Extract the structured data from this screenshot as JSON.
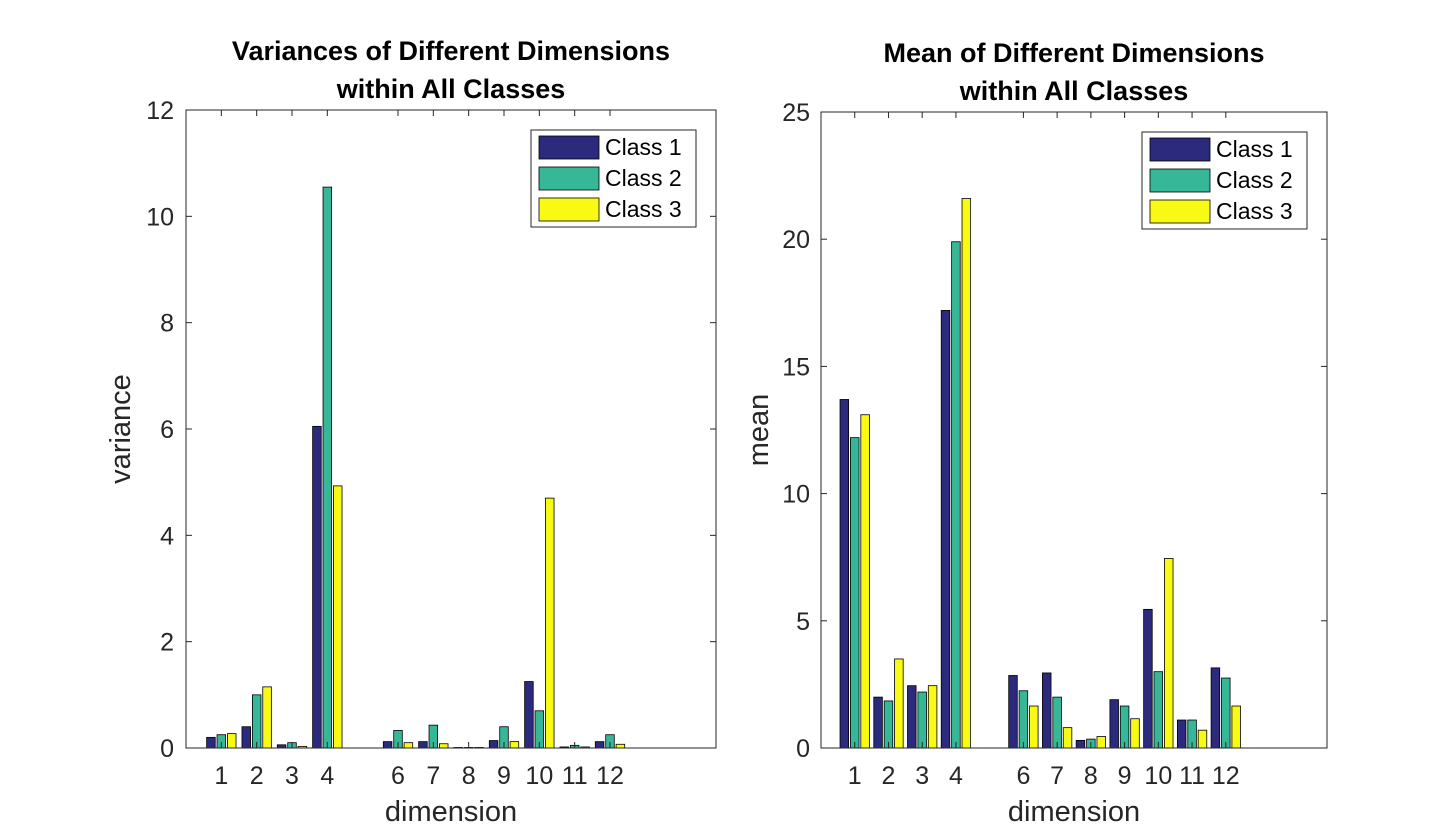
{
  "chart_data": [
    {
      "type": "bar",
      "title": [
        "Variances of Different Dimensions",
        "within All Classes"
      ],
      "xlabel": "dimension",
      "ylabel": "variance",
      "ylim": [
        0,
        12
      ],
      "xlim": [
        0,
        15
      ],
      "yticks": [
        0,
        2,
        4,
        6,
        8,
        10,
        12
      ],
      "x": [
        1,
        2,
        3,
        4,
        6,
        7,
        8,
        9,
        10,
        11,
        12
      ],
      "xticklabels": [
        "1",
        "2",
        "3",
        "4",
        "6",
        "7",
        "8",
        "9",
        "10",
        "11",
        "12"
      ],
      "legend_position": "top-right",
      "series": [
        {
          "name": "Class 1",
          "color": "#2c2a7d",
          "values": [
            0.2,
            0.4,
            0.06,
            6.05,
            0.12,
            0.12,
            0.01,
            0.14,
            1.25,
            0.02,
            0.12
          ]
        },
        {
          "name": "Class 2",
          "color": "#36b797",
          "values": [
            0.25,
            1.0,
            0.1,
            10.55,
            0.33,
            0.43,
            0.01,
            0.4,
            0.7,
            0.05,
            0.25
          ]
        },
        {
          "name": "Class 3",
          "color": "#f9fa14",
          "values": [
            0.27,
            1.15,
            0.03,
            4.93,
            0.1,
            0.08,
            0.01,
            0.12,
            4.7,
            0.02,
            0.07
          ]
        }
      ]
    },
    {
      "type": "bar",
      "title": [
        "Mean of Different Dimensions",
        "within All Classes"
      ],
      "xlabel": "dimension",
      "ylabel": "mean",
      "ylim": [
        0,
        25
      ],
      "xlim": [
        0,
        15
      ],
      "yticks": [
        0,
        5,
        10,
        15,
        20,
        25
      ],
      "x": [
        1,
        2,
        3,
        4,
        6,
        7,
        8,
        9,
        10,
        11,
        12
      ],
      "xticklabels": [
        "1",
        "2",
        "3",
        "4",
        "6",
        "7",
        "8",
        "9",
        "10",
        "11",
        "12"
      ],
      "legend_position": "top-right",
      "series": [
        {
          "name": "Class 1",
          "color": "#2c2a7d",
          "values": [
            13.7,
            2.0,
            2.45,
            17.2,
            2.85,
            2.95,
            0.3,
            1.9,
            5.45,
            1.1,
            3.15
          ]
        },
        {
          "name": "Class 2",
          "color": "#36b797",
          "values": [
            12.2,
            1.85,
            2.2,
            19.9,
            2.25,
            2.0,
            0.35,
            1.65,
            3.0,
            1.1,
            2.75
          ]
        },
        {
          "name": "Class 3",
          "color": "#f9fa14",
          "values": [
            13.1,
            3.5,
            2.45,
            21.6,
            1.65,
            0.8,
            0.45,
            1.15,
            7.45,
            0.7,
            1.65
          ]
        }
      ]
    }
  ]
}
